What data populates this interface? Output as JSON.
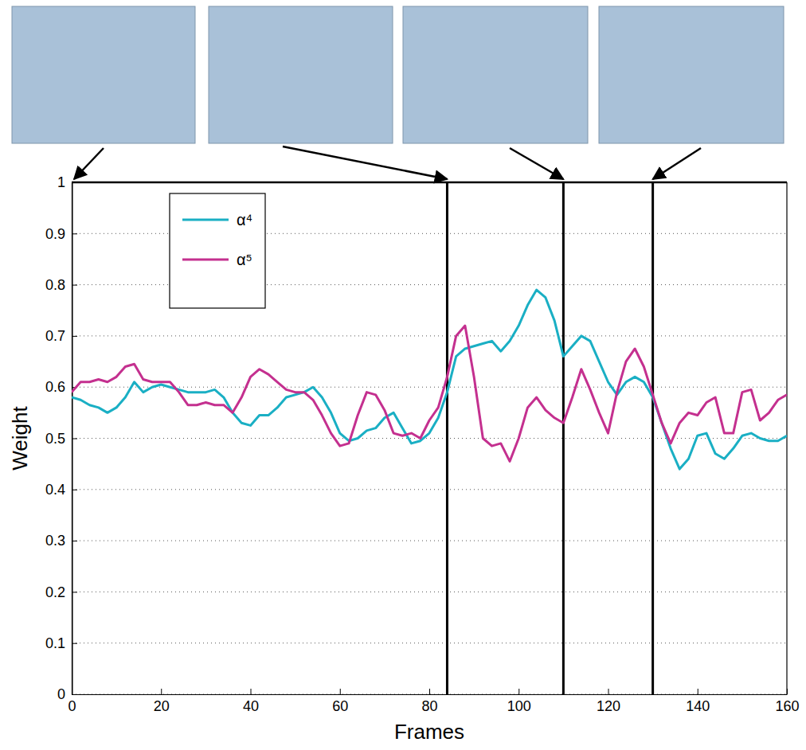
{
  "chart_data": {
    "type": "line",
    "x_label": "Frames",
    "y_label": "Weight",
    "x": [
      0,
      2,
      4,
      6,
      8,
      10,
      12,
      14,
      16,
      18,
      20,
      22,
      24,
      26,
      28,
      30,
      32,
      34,
      36,
      38,
      40,
      42,
      44,
      46,
      48,
      50,
      52,
      54,
      56,
      58,
      60,
      62,
      64,
      66,
      68,
      70,
      72,
      74,
      76,
      78,
      80,
      82,
      84,
      86,
      88,
      90,
      92,
      94,
      96,
      98,
      100,
      102,
      104,
      106,
      108,
      110,
      112,
      114,
      116,
      118,
      120,
      122,
      124,
      126,
      128,
      130,
      132,
      134,
      136,
      138,
      140,
      142,
      144,
      146,
      148,
      150,
      152,
      154,
      156,
      158,
      160
    ],
    "series": [
      {
        "name": "α⁴",
        "color": "#1aafc4",
        "values": [
          0.58,
          0.575,
          0.565,
          0.56,
          0.55,
          0.56,
          0.58,
          0.61,
          0.59,
          0.6,
          0.605,
          0.6,
          0.595,
          0.59,
          0.59,
          0.59,
          0.595,
          0.58,
          0.55,
          0.53,
          0.525,
          0.545,
          0.545,
          0.56,
          0.58,
          0.585,
          0.59,
          0.6,
          0.58,
          0.55,
          0.51,
          0.495,
          0.5,
          0.515,
          0.52,
          0.54,
          0.55,
          0.52,
          0.49,
          0.495,
          0.51,
          0.54,
          0.59,
          0.66,
          0.675,
          0.68,
          0.685,
          0.69,
          0.67,
          0.69,
          0.72,
          0.76,
          0.79,
          0.775,
          0.73,
          0.66,
          0.68,
          0.7,
          0.69,
          0.65,
          0.61,
          0.585,
          0.61,
          0.62,
          0.61,
          0.58,
          0.53,
          0.48,
          0.44,
          0.46,
          0.505,
          0.51,
          0.47,
          0.46,
          0.48,
          0.505,
          0.51,
          0.5,
          0.495,
          0.495,
          0.505
        ]
      },
      {
        "name": "α⁵",
        "color": "#c4308f",
        "values": [
          0.59,
          0.61,
          0.61,
          0.615,
          0.61,
          0.62,
          0.64,
          0.645,
          0.615,
          0.61,
          0.61,
          0.61,
          0.59,
          0.565,
          0.565,
          0.57,
          0.565,
          0.565,
          0.55,
          0.58,
          0.62,
          0.635,
          0.625,
          0.61,
          0.595,
          0.59,
          0.59,
          0.575,
          0.545,
          0.51,
          0.485,
          0.49,
          0.545,
          0.59,
          0.585,
          0.555,
          0.51,
          0.505,
          0.51,
          0.5,
          0.535,
          0.56,
          0.62,
          0.7,
          0.72,
          0.62,
          0.5,
          0.485,
          0.49,
          0.455,
          0.5,
          0.56,
          0.58,
          0.555,
          0.54,
          0.53,
          0.58,
          0.635,
          0.595,
          0.55,
          0.51,
          0.59,
          0.65,
          0.675,
          0.64,
          0.585,
          0.53,
          0.49,
          0.53,
          0.55,
          0.545,
          0.57,
          0.58,
          0.51,
          0.51,
          0.59,
          0.595,
          0.535,
          0.55,
          0.575,
          0.585
        ]
      }
    ],
    "frame_lines": [
      0,
      84,
      110,
      130
    ],
    "xlim": [
      0,
      160
    ],
    "ylim": [
      0,
      1
    ],
    "xticks": [
      0,
      20,
      40,
      60,
      80,
      100,
      120,
      140,
      160
    ],
    "yticks": [
      0,
      0.1,
      0.2,
      0.3,
      0.4,
      0.5,
      0.6,
      0.7,
      0.8,
      0.9,
      1
    ],
    "grid": true,
    "legend": "upper left"
  }
}
